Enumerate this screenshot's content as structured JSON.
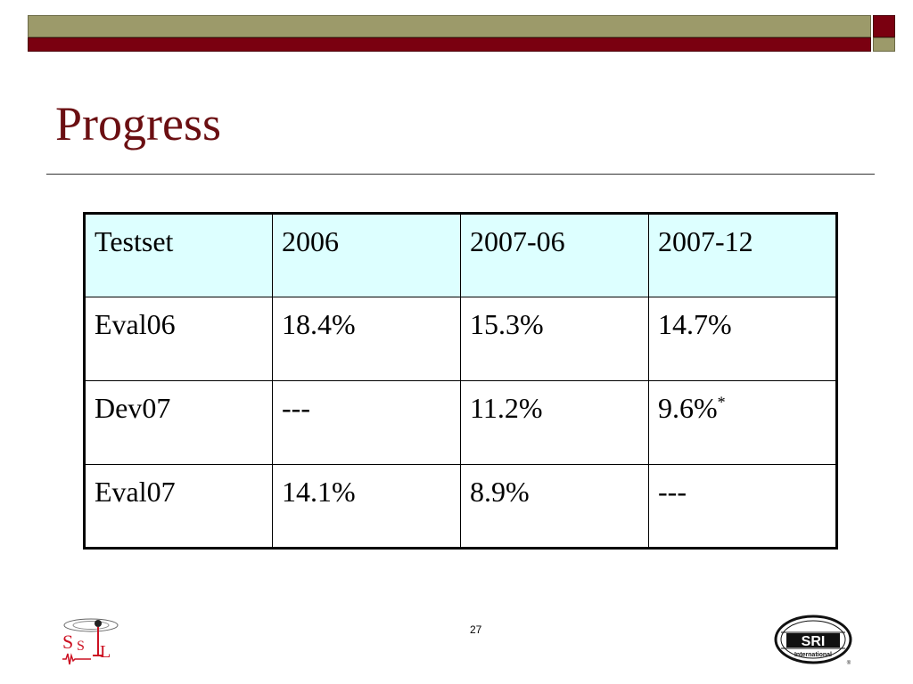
{
  "slide": {
    "title": "Progress",
    "page_number": "27"
  },
  "table": {
    "header": [
      "Testset",
      "2006",
      "2007-06",
      "2007-12"
    ],
    "rows": [
      [
        "Eval06",
        "18.4%",
        "15.3%",
        "14.7%"
      ],
      [
        "Dev07",
        "---",
        "11.2%",
        "9.6%"
      ],
      [
        "Eval07",
        "14.1%",
        "8.9%",
        "---"
      ]
    ],
    "footnote_marker": "*"
  },
  "logos": {
    "left": {
      "icon": "ssli-lab-logo-icon",
      "text": "SSLI"
    },
    "right": {
      "icon": "sri-international-logo-icon",
      "text": "SRI",
      "subtext": "International",
      "registered": "®"
    }
  },
  "colors": {
    "title": "#6b0f12",
    "bar_olive": "#9c9a6a",
    "bar_maroon": "#7a0010",
    "header_fill": "#ddffff"
  }
}
